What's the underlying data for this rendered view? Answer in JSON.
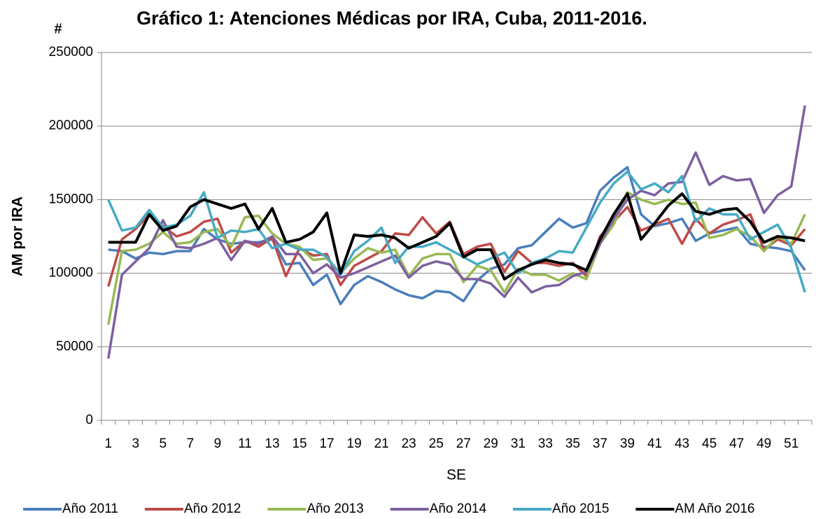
{
  "chart_data": {
    "type": "line",
    "title": "Gráfico   1: Atenciones Médicas por IRA, Cuba, 2011-2016.",
    "annotation": "#",
    "y_label": "AM por IRA",
    "x_label": "SE",
    "grid": true,
    "legend": "bottom",
    "ylim": [
      0,
      250000
    ],
    "yticks": [
      0,
      50000,
      100000,
      150000,
      200000,
      250000
    ],
    "categories": [
      1,
      null,
      3,
      null,
      5,
      null,
      7,
      null,
      9,
      null,
      11,
      null,
      13,
      null,
      15,
      null,
      17,
      null,
      19,
      null,
      21,
      null,
      23,
      null,
      25,
      null,
      27,
      null,
      29,
      null,
      31,
      null,
      33,
      null,
      35,
      null,
      37,
      null,
      39,
      null,
      41,
      null,
      43,
      null,
      45,
      null,
      47,
      null,
      49,
      null,
      51,
      null
    ],
    "series": [
      {
        "name": "Año 2011",
        "color": "#4a7ebb",
        "values": [
          116000,
          115000,
          110000,
          114000,
          113000,
          115000,
          115000,
          130000,
          123000,
          120000,
          121000,
          121000,
          123000,
          106000,
          107000,
          92000,
          99000,
          79000,
          92000,
          98000,
          94000,
          89000,
          85000,
          83000,
          88000,
          87000,
          81000,
          95000,
          103000,
          106000,
          117000,
          119000,
          128000,
          137000,
          131000,
          134000,
          156000,
          165000,
          172000,
          140000,
          132000,
          134000,
          137000,
          122000,
          127000,
          129000,
          131000,
          120000,
          118000,
          117000,
          115000,
          102000
        ]
      },
      {
        "name": "Año 2012",
        "color": "#be4b48",
        "values": [
          91000,
          123000,
          130000,
          140000,
          132000,
          125000,
          128000,
          135000,
          137000,
          114000,
          122000,
          118000,
          124000,
          98000,
          117000,
          112000,
          113000,
          92000,
          105000,
          110000,
          115000,
          127000,
          126000,
          138000,
          127000,
          135000,
          113000,
          118000,
          120000,
          101000,
          115000,
          107000,
          107000,
          105000,
          107000,
          98000,
          125000,
          135000,
          145000,
          129000,
          133000,
          137000,
          120000,
          137000,
          127000,
          133000,
          136000,
          140000,
          116000,
          123000,
          119000,
          130000
        ]
      },
      {
        "name": "Año 2013",
        "color": "#98b954",
        "values": [
          65000,
          115000,
          116000,
          120000,
          128000,
          120000,
          121000,
          128000,
          130000,
          118000,
          138000,
          139000,
          127000,
          120000,
          118000,
          109000,
          110000,
          100000,
          110000,
          117000,
          114000,
          116000,
          98000,
          110000,
          113000,
          113000,
          94000,
          105000,
          102000,
          87000,
          103000,
          99000,
          99000,
          95000,
          100000,
          96000,
          120000,
          133000,
          155000,
          150000,
          147000,
          150000,
          147000,
          148000,
          124000,
          126000,
          130000,
          125000,
          115000,
          125000,
          120000,
          140000
        ]
      },
      {
        "name": "Año 2014",
        "color": "#7d60a0",
        "values": [
          42000,
          99000,
          108000,
          117000,
          136000,
          118000,
          117000,
          120000,
          124000,
          109000,
          122000,
          120000,
          125000,
          113000,
          113000,
          100000,
          106000,
          97000,
          100000,
          104000,
          108000,
          112000,
          97000,
          105000,
          108000,
          106000,
          96000,
          96000,
          93000,
          84000,
          97000,
          87000,
          91000,
          92000,
          98000,
          101000,
          120000,
          137000,
          150000,
          156000,
          153000,
          161000,
          162000,
          182000,
          160000,
          166000,
          163000,
          164000,
          141000,
          153000,
          159000,
          214000
        ]
      },
      {
        "name": "Año 2015",
        "color": "#46aac5",
        "values": [
          150000,
          129000,
          131000,
          143000,
          131000,
          133000,
          139000,
          155000,
          124000,
          129000,
          128000,
          130000,
          117000,
          120000,
          116000,
          116000,
          111000,
          99000,
          115000,
          122000,
          131000,
          107000,
          118000,
          118000,
          121000,
          116000,
          111000,
          106000,
          110000,
          114000,
          100000,
          107000,
          110000,
          115000,
          114000,
          131000,
          148000,
          161000,
          169000,
          157000,
          161000,
          155000,
          166000,
          135000,
          144000,
          140000,
          140000,
          123000,
          128000,
          133000,
          117000,
          87000
        ]
      },
      {
        "name": "AM Año 2016",
        "color": "#000000",
        "values": [
          121000,
          121000,
          121000,
          140000,
          129000,
          132000,
          145000,
          150000,
          147000,
          144000,
          147000,
          130000,
          144000,
          121000,
          123000,
          128000,
          141000,
          100000,
          126000,
          125000,
          126000,
          124000,
          117000,
          121000,
          125000,
          134000,
          111000,
          116000,
          116000,
          96000,
          102000,
          106000,
          109000,
          107000,
          106000,
          102000,
          123000,
          140000,
          154000,
          123000,
          134000,
          146000,
          154000,
          142000,
          140000,
          143000,
          144000,
          135000,
          121000,
          125000,
          124000,
          122000
        ]
      }
    ]
  }
}
